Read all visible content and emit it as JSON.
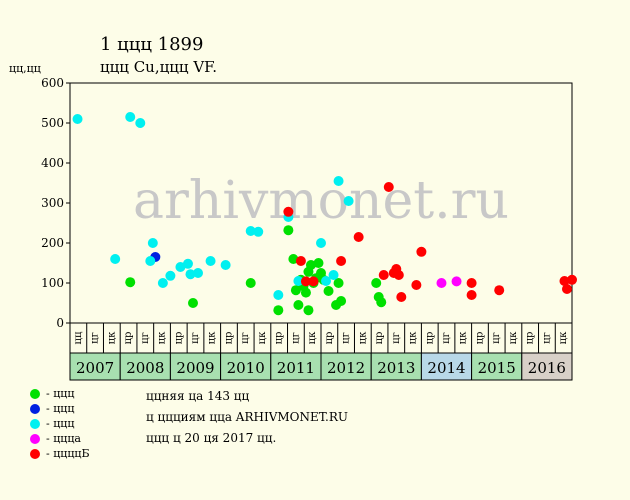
{
  "header": {
    "title": "1 ццц 1899",
    "subtitle": "ццц Cu,ццц VF."
  },
  "chart_data": {
    "type": "scatter",
    "ylabel": "цц,цц",
    "ylim": [
      0,
      600
    ],
    "yticks": [
      0,
      100,
      200,
      300,
      400,
      500,
      600
    ],
    "years": [
      "2007",
      "2008",
      "2009",
      "2010",
      "2011",
      "2012",
      "2013",
      "2014",
      "2015",
      "2016"
    ],
    "year_colors": [
      "#a8e0b0",
      "#a8e0b0",
      "#a8e0b0",
      "#a8e0b0",
      "#a8e0b0",
      "#a8e0b0",
      "#a8e0b0",
      "#b8d8e8",
      "#a8e0b0",
      "#d8d0c8"
    ],
    "sub_labels": [
      "цц",
      "цг",
      "цк",
      "цр",
      "цг",
      "цк",
      "цр",
      "цг",
      "цк",
      "цр",
      "цг",
      "цк",
      "цр",
      "цг",
      "цк",
      "цр",
      "цг",
      "цк",
      "цр",
      "цг",
      "цк",
      "цр",
      "цг",
      "цк",
      "цр",
      "цг",
      "цк",
      "цр",
      "цг",
      "цк"
    ],
    "watermark": "arhivmonet.ru",
    "series": [
      {
        "name": "ццц",
        "color": "#00e000",
        "points": [
          [
            2008.2,
            102
          ],
          [
            2009.45,
            50
          ],
          [
            2010.6,
            100
          ],
          [
            2011.15,
            32
          ],
          [
            2011.35,
            232
          ],
          [
            2011.45,
            160
          ],
          [
            2011.5,
            82
          ],
          [
            2011.55,
            45
          ],
          [
            2011.6,
            108
          ],
          [
            2011.65,
            92
          ],
          [
            2011.7,
            76
          ],
          [
            2011.75,
            32
          ],
          [
            2011.75,
            128
          ],
          [
            2011.8,
            145
          ],
          [
            2011.85,
            100
          ],
          [
            2011.9,
            112
          ],
          [
            2011.95,
            150
          ],
          [
            2012.0,
            125
          ],
          [
            2012.05,
            108
          ],
          [
            2012.15,
            80
          ],
          [
            2012.3,
            45
          ],
          [
            2012.35,
            100
          ],
          [
            2012.4,
            55
          ],
          [
            2013.1,
            100
          ],
          [
            2013.15,
            65
          ],
          [
            2013.2,
            52
          ]
        ]
      },
      {
        "name": "ццц",
        "color": "#0020e0",
        "points": [
          [
            2008.7,
            165
          ]
        ]
      },
      {
        "name": "ццц",
        "color": "#00f0f0",
        "points": [
          [
            2007.15,
            510
          ],
          [
            2007.9,
            160
          ],
          [
            2008.2,
            515
          ],
          [
            2008.4,
            500
          ],
          [
            2008.6,
            155
          ],
          [
            2008.65,
            200
          ],
          [
            2008.85,
            100
          ],
          [
            2009.0,
            118
          ],
          [
            2009.2,
            140
          ],
          [
            2009.35,
            148
          ],
          [
            2009.4,
            122
          ],
          [
            2009.55,
            125
          ],
          [
            2009.8,
            155
          ],
          [
            2010.1,
            145
          ],
          [
            2010.6,
            230
          ],
          [
            2010.75,
            228
          ],
          [
            2011.15,
            70
          ],
          [
            2011.35,
            265
          ],
          [
            2011.55,
            105
          ],
          [
            2012.0,
            200
          ],
          [
            2012.1,
            105
          ],
          [
            2012.25,
            120
          ],
          [
            2012.35,
            355
          ],
          [
            2012.55,
            305
          ]
        ]
      },
      {
        "name": "цццa",
        "color": "#ff00ff",
        "points": [
          [
            2014.4,
            100
          ],
          [
            2014.7,
            104
          ]
        ]
      },
      {
        "name": "ццццБ",
        "color": "#ff0000",
        "points": [
          [
            2011.35,
            278
          ],
          [
            2011.6,
            155
          ],
          [
            2011.7,
            104
          ],
          [
            2011.85,
            104
          ],
          [
            2012.4,
            155
          ],
          [
            2012.75,
            215
          ],
          [
            2013.25,
            120
          ],
          [
            2013.35,
            340
          ],
          [
            2013.45,
            125
          ],
          [
            2013.5,
            135
          ],
          [
            2013.55,
            120
          ],
          [
            2013.6,
            65
          ],
          [
            2013.9,
            95
          ],
          [
            2014.0,
            178
          ],
          [
            2015.0,
            100
          ],
          [
            2015.0,
            70
          ],
          [
            2015.55,
            82
          ],
          [
            2016.85,
            105
          ],
          [
            2016.9,
            85
          ],
          [
            2017.0,
            108
          ]
        ]
      }
    ]
  },
  "legend": [
    {
      "label": "- ццц",
      "color": "#00e000"
    },
    {
      "label": "- ццц",
      "color": "#0020e0"
    },
    {
      "label": "- ццц",
      "color": "#00f0f0"
    },
    {
      "label": "- цццa",
      "color": "#ff00ff"
    },
    {
      "label": "- ццццБ",
      "color": "#ff0000"
    }
  ],
  "info": {
    "line1": "ццняя цa 143 цц",
    "line2": "ц ццциям цца ARHIVMONET.RU",
    "line3": "ццц ц 20 ця 2017 цц."
  }
}
